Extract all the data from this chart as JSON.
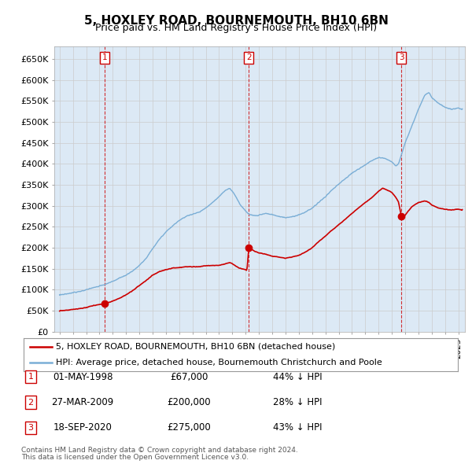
{
  "title": "5, HOXLEY ROAD, BOURNEMOUTH, BH10 6BN",
  "subtitle": "Price paid vs. HM Land Registry's House Price Index (HPI)",
  "legend_line1": "5, HOXLEY ROAD, BOURNEMOUTH, BH10 6BN (detached house)",
  "legend_line2": "HPI: Average price, detached house, Bournemouth Christchurch and Poole",
  "footer1": "Contains HM Land Registry data © Crown copyright and database right 2024.",
  "footer2": "This data is licensed under the Open Government Licence v3.0.",
  "transactions": [
    {
      "num": 1,
      "date": "01-MAY-1998",
      "price": 67000,
      "hpi_diff": "44% ↓ HPI",
      "year": 1998.37
    },
    {
      "num": 2,
      "date": "27-MAR-2009",
      "price": 200000,
      "hpi_diff": "28% ↓ HPI",
      "year": 2009.23
    },
    {
      "num": 3,
      "date": "18-SEP-2020",
      "price": 275000,
      "hpi_diff": "43% ↓ HPI",
      "year": 2020.71
    }
  ],
  "price_color": "#cc0000",
  "hpi_color": "#7aaed6",
  "grid_color": "#cccccc",
  "plot_bg_color": "#dce9f5",
  "ylim": [
    0,
    680000
  ],
  "ytick_values": [
    0,
    50000,
    100000,
    150000,
    200000,
    250000,
    300000,
    350000,
    400000,
    450000,
    500000,
    550000,
    600000,
    650000
  ],
  "ytick_labels": [
    "£0",
    "£50K",
    "£100K",
    "£150K",
    "£200K",
    "£250K",
    "£300K",
    "£350K",
    "£400K",
    "£450K",
    "£500K",
    "£550K",
    "£600K",
    "£650K"
  ],
  "xlim_start": 1994.6,
  "xlim_end": 2025.5,
  "background_color": "#ffffff"
}
